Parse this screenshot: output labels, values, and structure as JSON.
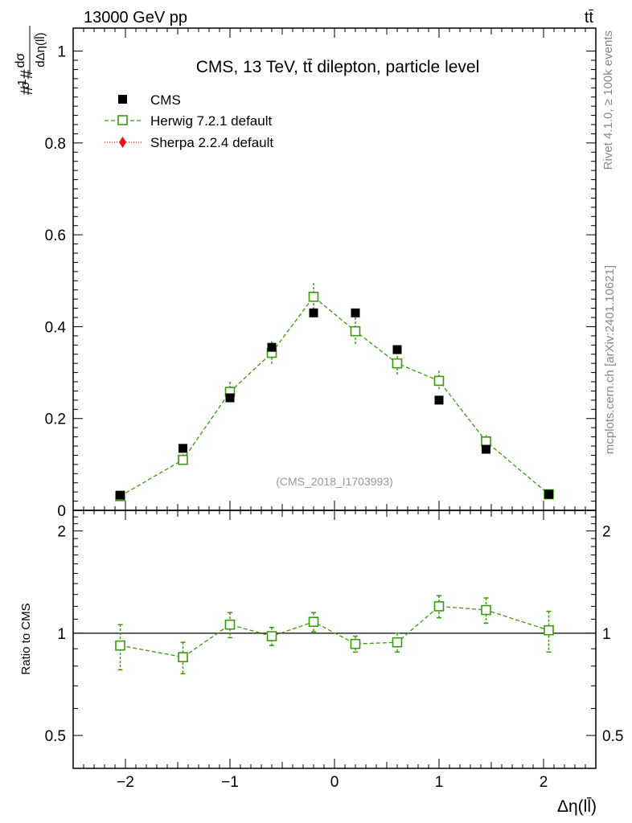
{
  "header": {
    "beam": "13000 GeV pp",
    "process": "tt̄"
  },
  "side_labels": {
    "rivet": "Rivet 4.1.0, ≥ 100k events",
    "site": "mcplots.cern.ch [arXiv:2401.10621]"
  },
  "chart_data": [
    {
      "type": "scatter",
      "panel": "main",
      "title": "CMS, 13 TeV, tt̄ dilepton, particle level",
      "ylabel": "#1/σ# dσ/dΔη(ll̄)",
      "analysis_tag": "(CMS_2018_I1703993)",
      "xlim": [
        -2.5,
        2.5
      ],
      "ylim": [
        0,
        1.05
      ],
      "yticks": [
        0,
        0.2,
        0.4,
        0.6,
        0.8,
        1
      ],
      "ytick_labels": [
        "0",
        "0.2",
        "0.4",
        "0.6",
        "0.8",
        "1"
      ],
      "legend": [
        "CMS",
        "Herwig 7.2.1 default",
        "Sherpa 2.2.4 default"
      ],
      "series": [
        {
          "name": "CMS",
          "color": "#000000",
          "x": [
            -2.05,
            -1.45,
            -1.0,
            -0.6,
            -0.2,
            0.2,
            0.6,
            1.0,
            1.45,
            2.05
          ],
          "y": [
            0.033,
            0.135,
            0.245,
            0.355,
            0.43,
            0.43,
            0.35,
            0.24,
            0.133,
            0.035
          ]
        },
        {
          "name": "Herwig 7.2.1 default",
          "color": "#3a9a0e",
          "x": [
            -2.05,
            -1.45,
            -1.0,
            -0.6,
            -0.2,
            0.2,
            0.6,
            1.0,
            1.45,
            2.05
          ],
          "y": [
            0.031,
            0.11,
            0.258,
            0.343,
            0.465,
            0.39,
            0.32,
            0.282,
            0.15,
            0.035
          ],
          "err": [
            0.004,
            0.012,
            0.022,
            0.025,
            0.03,
            0.03,
            0.025,
            0.022,
            0.014,
            0.004
          ]
        },
        {
          "name": "Sherpa 2.2.4 default",
          "color": "#e8120a",
          "x": [],
          "y": []
        }
      ]
    },
    {
      "type": "scatter",
      "panel": "ratio",
      "ylabel": "Ratio to CMS",
      "xlabel": "Δη(ll̄)",
      "xlim": [
        -2.5,
        2.5
      ],
      "ylim": [
        0.4,
        2.3
      ],
      "yscale": "log",
      "yticks": [
        0.5,
        1,
        2
      ],
      "ytick_labels": [
        "0.5",
        "1",
        "2"
      ],
      "xticks": [
        -2,
        -1,
        0,
        1,
        2
      ],
      "xtick_labels": [
        "−2",
        "−1",
        "0",
        "1",
        "2"
      ],
      "reference_line": 1,
      "series": [
        {
          "name": "Herwig 7.2.1 default",
          "color": "#3a9a0e",
          "x": [
            -2.05,
            -1.45,
            -1.0,
            -0.6,
            -0.2,
            0.2,
            0.6,
            1.0,
            1.45,
            2.05
          ],
          "y": [
            0.92,
            0.85,
            1.06,
            0.98,
            1.08,
            0.93,
            0.94,
            1.2,
            1.17,
            1.02
          ],
          "err_lo": [
            0.14,
            0.09,
            0.09,
            0.06,
            0.07,
            0.05,
            0.06,
            0.09,
            0.1,
            0.14
          ],
          "err_hi": [
            0.14,
            0.09,
            0.09,
            0.06,
            0.07,
            0.05,
            0.06,
            0.09,
            0.1,
            0.14
          ]
        }
      ]
    }
  ]
}
